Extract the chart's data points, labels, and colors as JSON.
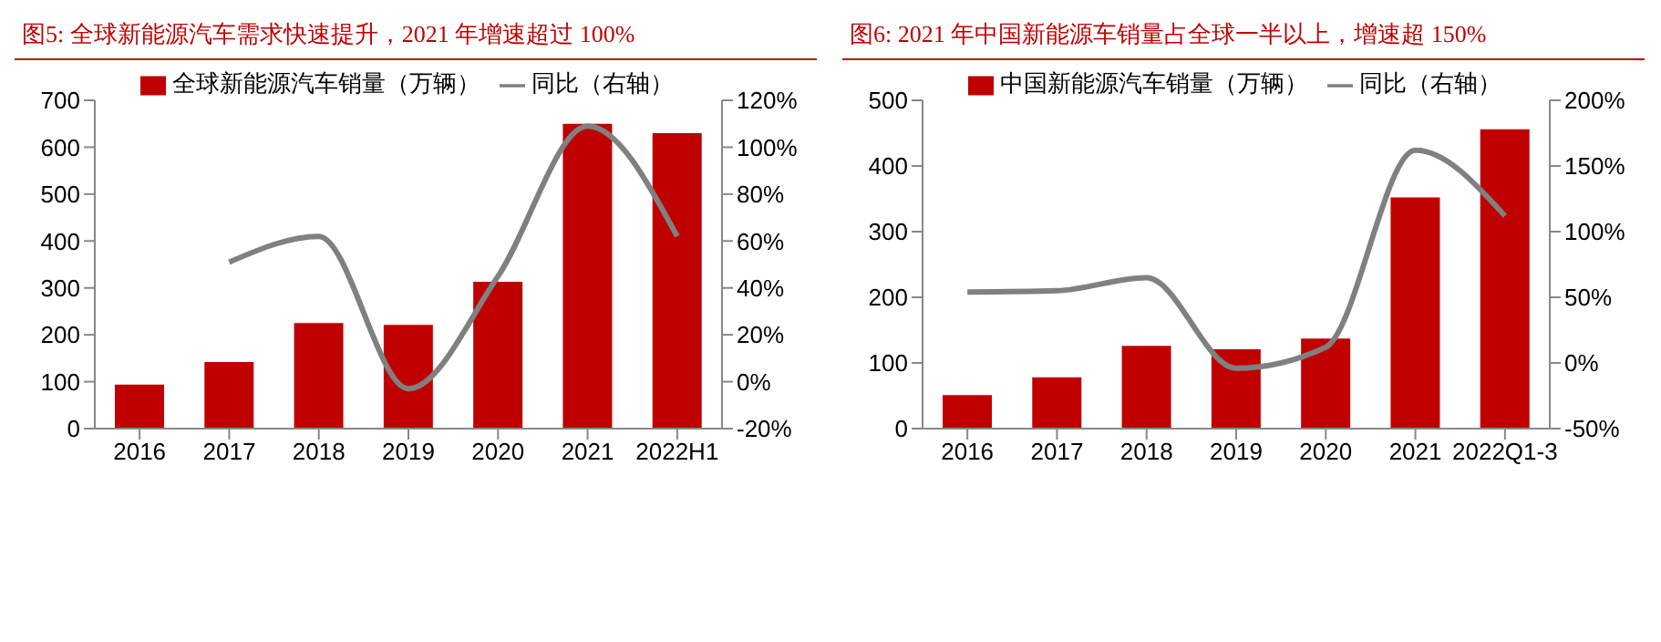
{
  "chart_data": [
    {
      "type": "bar",
      "title": "图5:   全球新能源汽车需求快速提升，2021 年增速超过 100%",
      "categories": [
        "2016",
        "2017",
        "2018",
        "2019",
        "2020",
        "2021",
        "2022H1"
      ],
      "series": [
        {
          "name": "全球新能源汽车销量（万辆）",
          "color": "#c00000",
          "values": [
            94,
            142,
            225,
            221,
            313,
            650,
            630
          ]
        },
        {
          "type": "line",
          "name": "同比（右轴）",
          "color": "#808080",
          "axis": "y2",
          "values": [
            null,
            51,
            62,
            -3,
            45,
            109,
            62
          ]
        }
      ],
      "ylim": [
        0,
        700
      ],
      "yticks": [
        0,
        100,
        200,
        300,
        400,
        500,
        600,
        700
      ],
      "y2lim": [
        -20,
        120
      ],
      "y2ticks": [
        {
          "value": -20,
          "label": "-20%"
        },
        {
          "value": 0,
          "label": "0%"
        },
        {
          "value": 20,
          "label": "20%"
        },
        {
          "value": 40,
          "label": "40%"
        },
        {
          "value": 60,
          "label": "60%"
        },
        {
          "value": 80,
          "label": "80%"
        },
        {
          "value": 100,
          "label": "100%"
        },
        {
          "value": 120,
          "label": "120%"
        }
      ],
      "legend": "top",
      "marker": "none"
    },
    {
      "type": "bar",
      "title": "图6:   2021 年中国新能源车销量占全球一半以上，增速超 150%",
      "categories": [
        "2016",
        "2017",
        "2018",
        "2019",
        "2020",
        "2021",
        "2022Q1-3"
      ],
      "series": [
        {
          "name": "中国新能源汽车销量（万辆）",
          "color": "#c00000",
          "values": [
            51,
            78,
            126,
            121,
            137,
            352,
            456
          ]
        },
        {
          "type": "line",
          "name": "同比（右轴）",
          "color": "#808080",
          "axis": "y2",
          "values": [
            54,
            55,
            65,
            -4,
            12,
            162,
            112
          ]
        }
      ],
      "ylim": [
        0,
        500
      ],
      "yticks": [
        0,
        100,
        200,
        300,
        400,
        500
      ],
      "y2lim": [
        -50,
        200
      ],
      "y2ticks": [
        {
          "value": -50,
          "label": "-50%"
        },
        {
          "value": 0,
          "label": "0%"
        },
        {
          "value": 50,
          "label": "50%"
        },
        {
          "value": 100,
          "label": "100%"
        },
        {
          "value": 150,
          "label": "150%"
        },
        {
          "value": 200,
          "label": "200%"
        }
      ],
      "legend": "top",
      "marker": "none"
    }
  ]
}
